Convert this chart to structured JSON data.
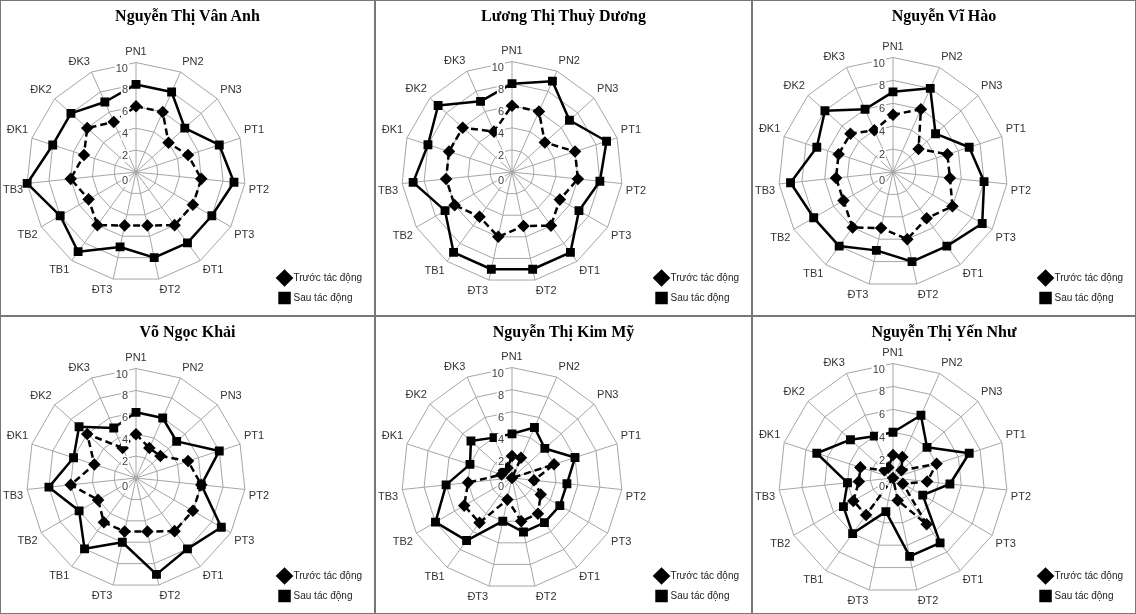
{
  "chart_data": [
    {
      "type": "radar",
      "title": "Nguyễn Thị Vân Anh",
      "categories": [
        "PN1",
        "PN2",
        "PN3",
        "PT1",
        "PT2",
        "PT3",
        "ĐT1",
        "ĐT2",
        "ĐT3",
        "TB1",
        "TB2",
        "TB3",
        "ĐK1",
        "ĐK2",
        "ĐK3"
      ],
      "ylim": [
        0,
        10
      ],
      "yticks": [
        0,
        2,
        4,
        6,
        8,
        10
      ],
      "legend": "bottom right",
      "grid": true,
      "series": [
        {
          "name": "Trước tác động",
          "color": "#000000",
          "line_style": "dashed",
          "marker": "diamond",
          "values": [
            6,
            6,
            4,
            5,
            6,
            6,
            6,
            5,
            5,
            6,
            5,
            6,
            5,
            6,
            5
          ]
        },
        {
          "name": "Sau tác động",
          "color": "#000000",
          "line_style": "solid",
          "marker": "square",
          "values": [
            8,
            8,
            6,
            8,
            9,
            8,
            8,
            8,
            7,
            9,
            8,
            10,
            8,
            8,
            7
          ]
        }
      ]
    },
    {
      "type": "radar",
      "title": "Lương Thị Thuỳ Dương",
      "categories": [
        "PN1",
        "PN2",
        "PN3",
        "PT1",
        "PT2",
        "PT3",
        "ĐT1",
        "ĐT2",
        "ĐT3",
        "TB1",
        "TB2",
        "TB3",
        "ĐK1",
        "ĐK2",
        "ĐK3"
      ],
      "ylim": [
        0,
        10
      ],
      "yticks": [
        0,
        2,
        4,
        6,
        8,
        10
      ],
      "legend": "bottom right",
      "grid": true,
      "series": [
        {
          "name": "Trước tác động",
          "color": "#000000",
          "line_style": "dashed",
          "marker": "diamond",
          "values": [
            6,
            6,
            4,
            6,
            6,
            5,
            6,
            5,
            6,
            5,
            6,
            6,
            6,
            6,
            4
          ]
        },
        {
          "name": "Sau tác động",
          "color": "#000000",
          "line_style": "solid",
          "marker": "square",
          "values": [
            8,
            9,
            7,
            9,
            8,
            7,
            9,
            9,
            9,
            9,
            7,
            9,
            8,
            9,
            7
          ]
        }
      ]
    },
    {
      "type": "radar",
      "title": "Nguyễn Vĩ Hào",
      "categories": [
        "PN1",
        "PN2",
        "PN3",
        "PT1",
        "PT2",
        "PT3",
        "ĐT1",
        "ĐT2",
        "ĐT3",
        "TB1",
        "TB2",
        "TB3",
        "ĐK1",
        "ĐK2",
        "ĐK3"
      ],
      "ylim": [
        0,
        10
      ],
      "yticks": [
        0,
        2,
        4,
        6,
        8,
        10
      ],
      "legend": "bottom right",
      "grid": true,
      "series": [
        {
          "name": "Trước tác động",
          "color": "#000000",
          "line_style": "dashed",
          "marker": "diamond",
          "values": [
            5,
            6,
            3,
            5,
            5,
            6,
            5,
            6,
            5,
            6,
            5,
            5,
            5,
            5,
            4
          ]
        },
        {
          "name": "Sau tác động",
          "color": "#000000",
          "line_style": "solid",
          "marker": "square",
          "values": [
            7,
            8,
            5,
            7,
            8,
            9,
            8,
            8,
            7,
            8,
            8,
            9,
            7,
            8,
            6
          ]
        }
      ]
    },
    {
      "type": "radar",
      "title": "Võ Ngọc Khải",
      "categories": [
        "PN1",
        "PN2",
        "PN3",
        "PT1",
        "PT2",
        "PT3",
        "ĐT1",
        "ĐT2",
        "ĐT3",
        "TB1",
        "TB2",
        "TB3",
        "ĐK1",
        "ĐK2",
        "ĐK3"
      ],
      "ylim": [
        0,
        10
      ],
      "yticks": [
        0,
        2,
        4,
        6,
        8,
        10
      ],
      "legend": "bottom right",
      "grid": true,
      "series": [
        {
          "name": "Trước tác động",
          "color": "#000000",
          "line_style": "dashed",
          "marker": "diamond",
          "values": [
            4,
            3,
            3,
            5,
            6,
            6,
            6,
            5,
            5,
            5,
            4,
            6,
            4,
            6,
            3
          ]
        },
        {
          "name": "Sau tác động",
          "color": "#000000",
          "line_style": "solid",
          "marker": "square",
          "values": [
            6,
            6,
            5,
            8,
            6,
            9,
            8,
            9,
            6,
            8,
            6,
            8,
            6,
            7,
            5
          ]
        }
      ]
    },
    {
      "type": "radar",
      "title": "Nguyễn Thị Kim Mỹ",
      "categories": [
        "PN1",
        "PN2",
        "PN3",
        "PT1",
        "PT2",
        "PT3",
        "ĐT1",
        "ĐT2",
        "ĐT3",
        "TB1",
        "TB2",
        "TB3",
        "ĐK1",
        "ĐK2",
        "ĐK3"
      ],
      "ylim": [
        0,
        10
      ],
      "yticks": [
        0,
        2,
        4,
        6,
        8,
        10
      ],
      "legend": "bottom right",
      "grid": true,
      "series": [
        {
          "name": "Trước tác động",
          "color": "#000000",
          "line_style": "dashed",
          "marker": "diamond",
          "values": [
            2,
            2,
            0,
            4,
            2,
            3,
            4,
            4,
            2,
            5,
            5,
            4,
            1,
            1,
            1
          ]
        },
        {
          "name": "Sau tác động",
          "color": "#000000",
          "line_style": "solid",
          "marker": "square",
          "values": [
            4,
            5,
            4,
            6,
            5,
            5,
            5,
            5,
            4,
            7,
            8,
            6,
            4,
            5,
            4
          ]
        }
      ]
    },
    {
      "type": "radar",
      "title": "Nguyễn Thị Yến Như",
      "categories": [
        "PN1",
        "PN2",
        "PN3",
        "PT1",
        "PT2",
        "PT3",
        "ĐT1",
        "ĐT2",
        "ĐT3",
        "TB1",
        "TB2",
        "TB3",
        "ĐK1",
        "ĐK2",
        "ĐK3"
      ],
      "ylim": [
        0,
        10
      ],
      "yticks": [
        0,
        2,
        4,
        6,
        8,
        10
      ],
      "legend": "bottom right",
      "grid": true,
      "series": [
        {
          "name": "Trước tác động",
          "color": "#000000",
          "line_style": "dashed",
          "marker": "diamond",
          "values": [
            2,
            2,
            1,
            4,
            3,
            1,
            5,
            2,
            0,
            4,
            4,
            3,
            3,
            1,
            1
          ]
        },
        {
          "name": "Sau tác động",
          "color": "#000000",
          "line_style": "solid",
          "marker": "square",
          "values": [
            4,
            6,
            4,
            7,
            5,
            3,
            7,
            7,
            3,
            6,
            5,
            4,
            7,
            5,
            4
          ]
        }
      ]
    }
  ]
}
